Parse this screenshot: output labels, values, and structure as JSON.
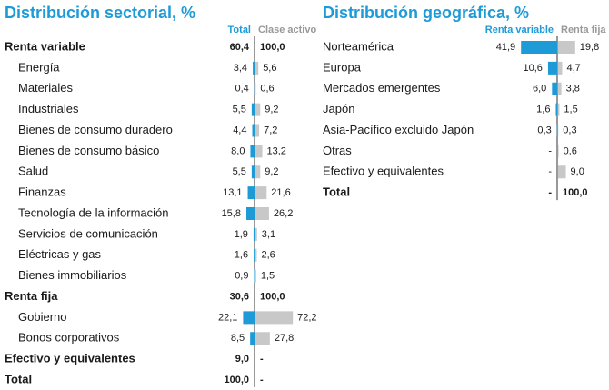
{
  "chart_data": [
    {
      "type": "bar",
      "title": "Distribución sectorial, %",
      "categories": [
        "Renta variable",
        "Energía",
        "Materiales",
        "Industriales",
        "Bienes de consumo duradero",
        "Bienes de consumo básico",
        "Salud",
        "Finanzas",
        "Tecnología de la información",
        "Servicios de comunicación",
        "Eléctricas y gas",
        "Bienes immobiliarios",
        "Renta fija",
        "Gobierno",
        "Bonos corporativos",
        "Efectivo y equivalentes",
        "Total"
      ],
      "bold": [
        true,
        false,
        false,
        false,
        false,
        false,
        false,
        false,
        false,
        false,
        false,
        false,
        true,
        false,
        false,
        true,
        true
      ],
      "series": [
        {
          "name": "Total",
          "color": "#1e9bd7",
          "values": [
            60.4,
            3.4,
            0.4,
            5.5,
            4.4,
            8.0,
            5.5,
            13.1,
            15.8,
            1.9,
            1.6,
            0.9,
            30.6,
            22.1,
            8.5,
            9.0,
            100.0
          ],
          "value_labels": [
            "60,4",
            "3,4",
            "0,4",
            "5,5",
            "4,4",
            "8,0",
            "5,5",
            "13,1",
            "15,8",
            "1,9",
            "1,6",
            "0,9",
            "30,6",
            "22,1",
            "8,5",
            "9,0",
            "100,0"
          ]
        },
        {
          "name": "Clase activo",
          "color": "#c8c8c8",
          "values": [
            100.0,
            5.6,
            0.6,
            9.2,
            7.2,
            13.2,
            9.2,
            21.6,
            26.2,
            3.1,
            2.6,
            1.5,
            100.0,
            72.2,
            27.8,
            null,
            null
          ],
          "value_labels": [
            "100,0",
            "5,6",
            "0,6",
            "9,2",
            "7,2",
            "13,2",
            "9,2",
            "21,6",
            "26,2",
            "3,1",
            "2,6",
            "1,5",
            "100,0",
            "72,2",
            "27,8",
            "-",
            "-"
          ]
        }
      ]
    },
    {
      "type": "bar",
      "title": "Distribución geográfica, %",
      "categories": [
        "Norteamérica",
        "Europa",
        "Mercados emergentes",
        "Japón",
        "Asia-Pacífico excluido Japón",
        "Otras",
        "Efectivo y equivalentes",
        "Total"
      ],
      "bold": [
        false,
        false,
        false,
        false,
        false,
        false,
        false,
        true
      ],
      "series": [
        {
          "name": "Renta variable",
          "color": "#1e9bd7",
          "values": [
            41.9,
            10.6,
            6.0,
            1.6,
            0.3,
            null,
            null,
            null
          ],
          "value_labels": [
            "41,9",
            "10,6",
            "6,0",
            "1,6",
            "0,3",
            "-",
            "-",
            "-"
          ]
        },
        {
          "name": "Renta fija",
          "color": "#c8c8c8",
          "values": [
            19.8,
            4.7,
            3.8,
            1.5,
            0.3,
            0.6,
            9.0,
            100.0
          ],
          "value_labels": [
            "19,8",
            "4,7",
            "3,8",
            "1,5",
            "0,3",
            "0,6",
            "9,0",
            "100,0"
          ]
        }
      ]
    }
  ]
}
